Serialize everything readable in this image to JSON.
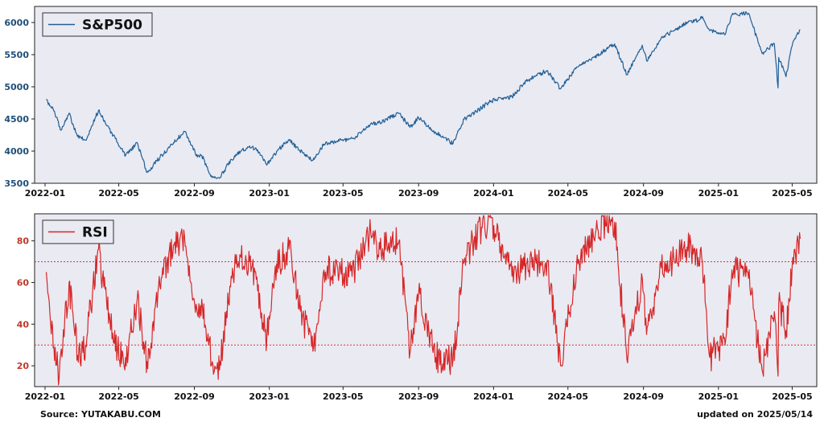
{
  "chart_data": [
    {
      "type": "line",
      "legend": "S&P500",
      "legend_placement": "top-left",
      "color": "#1f5f96",
      "ylim": [
        3500,
        6250
      ],
      "yticks": [
        3500,
        4000,
        4500,
        5000,
        5500,
        6000
      ],
      "xlim": [
        "2021-12-15",
        "2025-06-10"
      ],
      "xticks": [
        "2022-01",
        "2022-05",
        "2022-09",
        "2023-01",
        "2023-05",
        "2023-09",
        "2024-01",
        "2024-05",
        "2024-09",
        "2025-01",
        "2025-05"
      ],
      "series": [
        {
          "values": [
            [
              "2022-01-03",
              4796
            ],
            [
              "2022-01-14",
              4660
            ],
            [
              "2022-01-27",
              4326
            ],
            [
              "2022-02-09",
              4587
            ],
            [
              "2022-02-23",
              4226
            ],
            [
              "2022-03-08",
              4170
            ],
            [
              "2022-03-29",
              4631
            ],
            [
              "2022-04-12",
              4397
            ],
            [
              "2022-04-29",
              4132
            ],
            [
              "2022-05-12",
              3930
            ],
            [
              "2022-05-31",
              4132
            ],
            [
              "2022-06-16",
              3667
            ],
            [
              "2022-07-07",
              3902
            ],
            [
              "2022-07-29",
              4130
            ],
            [
              "2022-08-16",
              4305
            ],
            [
              "2022-09-06",
              3908
            ],
            [
              "2022-09-13",
              3932
            ],
            [
              "2022-09-30",
              3586
            ],
            [
              "2022-10-12",
              3578
            ],
            [
              "2022-10-31",
              3872
            ],
            [
              "2022-11-15",
              3992
            ],
            [
              "2022-11-30",
              4080
            ],
            [
              "2022-12-13",
              4019
            ],
            [
              "2022-12-28",
              3783
            ],
            [
              "2023-01-13",
              3999
            ],
            [
              "2023-02-02",
              4180
            ],
            [
              "2023-02-24",
              3970
            ],
            [
              "2023-03-13",
              3856
            ],
            [
              "2023-03-31",
              4109
            ],
            [
              "2023-04-28",
              4169
            ],
            [
              "2023-05-19",
              4192
            ],
            [
              "2023-06-15",
              4425
            ],
            [
              "2023-06-30",
              4450
            ],
            [
              "2023-07-31",
              4589
            ],
            [
              "2023-08-18",
              4370
            ],
            [
              "2023-09-01",
              4515
            ],
            [
              "2023-09-29",
              4288
            ],
            [
              "2023-10-27",
              4117
            ],
            [
              "2023-11-14",
              4495
            ],
            [
              "2023-12-01",
              4594
            ],
            [
              "2023-12-28",
              4783
            ],
            [
              "2024-01-31",
              4845
            ],
            [
              "2024-02-23",
              5088
            ],
            [
              "2024-03-28",
              5254
            ],
            [
              "2024-04-19",
              4967
            ],
            [
              "2024-05-15",
              5308
            ],
            [
              "2024-06-18",
              5487
            ],
            [
              "2024-07-16",
              5667
            ],
            [
              "2024-08-05",
              5186
            ],
            [
              "2024-08-30",
              5648
            ],
            [
              "2024-09-06",
              5408
            ],
            [
              "2024-09-30",
              5762
            ],
            [
              "2024-10-18",
              5864
            ],
            [
              "2024-11-11",
              6001
            ],
            [
              "2024-11-29",
              6032
            ],
            [
              "2024-12-06",
              6090
            ],
            [
              "2024-12-18",
              5872
            ],
            [
              "2025-01-13",
              5836
            ],
            [
              "2025-01-23",
              6118
            ],
            [
              "2025-02-19",
              6144
            ],
            [
              "2025-03-13",
              5521
            ],
            [
              "2025-04-02",
              5670
            ],
            [
              "2025-04-08",
              4982
            ],
            [
              "2025-04-09",
              5456
            ],
            [
              "2025-04-21",
              5158
            ],
            [
              "2025-05-02",
              5686
            ],
            [
              "2025-05-14",
              5892
            ]
          ]
        }
      ]
    },
    {
      "type": "line",
      "legend": "RSI",
      "legend_placement": "top-left",
      "color": "#d62728",
      "ylim": [
        10,
        93
      ],
      "yticks": [
        20,
        40,
        60,
        80
      ],
      "reference_lines": [
        70,
        30
      ],
      "xlim": [
        "2021-12-15",
        "2025-06-10"
      ],
      "xticks": [
        "2022-01",
        "2022-05",
        "2022-09",
        "2023-01",
        "2023-05",
        "2023-09",
        "2024-01",
        "2024-05",
        "2024-09",
        "2025-01",
        "2025-05"
      ],
      "series": [
        {
          "values": [
            [
              "2022-01-03",
              65
            ],
            [
              "2022-01-10",
              40
            ],
            [
              "2022-01-24",
              14
            ],
            [
              "2022-02-09",
              60
            ],
            [
              "2022-02-23",
              25
            ],
            [
              "2022-03-08",
              30
            ],
            [
              "2022-03-29",
              76
            ],
            [
              "2022-04-12",
              47
            ],
            [
              "2022-04-29",
              28
            ],
            [
              "2022-05-12",
              24
            ],
            [
              "2022-05-31",
              52
            ],
            [
              "2022-06-16",
              22
            ],
            [
              "2022-07-07",
              58
            ],
            [
              "2022-07-29",
              78
            ],
            [
              "2022-08-16",
              82
            ],
            [
              "2022-09-06",
              45
            ],
            [
              "2022-09-13",
              52
            ],
            [
              "2022-09-30",
              22
            ],
            [
              "2022-10-12",
              18
            ],
            [
              "2022-10-31",
              63
            ],
            [
              "2022-11-15",
              73
            ],
            [
              "2022-11-30",
              70
            ],
            [
              "2022-12-13",
              56
            ],
            [
              "2022-12-28",
              33
            ],
            [
              "2023-01-13",
              69
            ],
            [
              "2023-02-02",
              76
            ],
            [
              "2023-02-24",
              44
            ],
            [
              "2023-03-13",
              27
            ],
            [
              "2023-03-31",
              66
            ],
            [
              "2023-04-28",
              64
            ],
            [
              "2023-05-19",
              66
            ],
            [
              "2023-06-15",
              84
            ],
            [
              "2023-06-30",
              76
            ],
            [
              "2023-07-31",
              80
            ],
            [
              "2023-08-18",
              26
            ],
            [
              "2023-09-01",
              55
            ],
            [
              "2023-09-29",
              24
            ],
            [
              "2023-10-27",
              23
            ],
            [
              "2023-11-14",
              70
            ],
            [
              "2023-12-01",
              82
            ],
            [
              "2023-12-28",
              91
            ],
            [
              "2024-01-31",
              63
            ],
            [
              "2024-02-23",
              69
            ],
            [
              "2024-03-28",
              70
            ],
            [
              "2024-04-19",
              20
            ],
            [
              "2024-05-15",
              68
            ],
            [
              "2024-06-18",
              86
            ],
            [
              "2024-07-16",
              89
            ],
            [
              "2024-08-05",
              23
            ],
            [
              "2024-08-30",
              62
            ],
            [
              "2024-09-06",
              35
            ],
            [
              "2024-09-30",
              67
            ],
            [
              "2024-10-18",
              70
            ],
            [
              "2024-11-11",
              77
            ],
            [
              "2024-11-29",
              72
            ],
            [
              "2024-12-06",
              70
            ],
            [
              "2024-12-18",
              24
            ],
            [
              "2025-01-13",
              33
            ],
            [
              "2025-01-23",
              66
            ],
            [
              "2025-02-19",
              62
            ],
            [
              "2025-03-13",
              18
            ],
            [
              "2025-04-02",
              46
            ],
            [
              "2025-04-08",
              15
            ],
            [
              "2025-04-09",
              50
            ],
            [
              "2025-04-21",
              37
            ],
            [
              "2025-05-02",
              72
            ],
            [
              "2025-05-14",
              81
            ]
          ]
        }
      ]
    }
  ],
  "footer": {
    "source": "Source: YUTAKABU.COM",
    "updated": "updated on 2025/05/14"
  }
}
